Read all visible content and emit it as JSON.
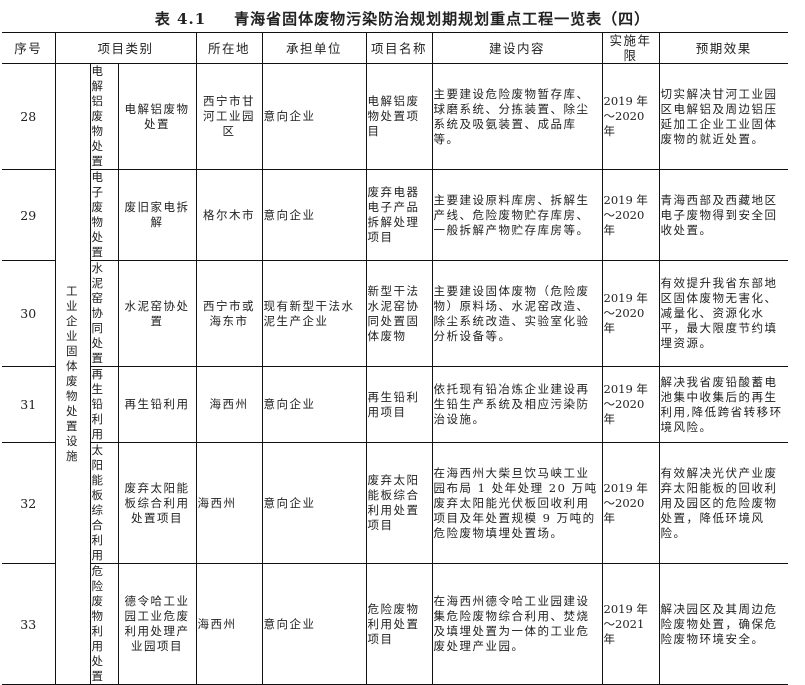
{
  "title": {
    "number": "表 4.1",
    "text": "青海省固体废物污染防治规划期规划重点工程一览表（四）"
  },
  "headers": [
    "序号",
    "项目类别",
    "所在地",
    "承担单位",
    "项目名称",
    "建设内容",
    "实施年限",
    "预期效果"
  ],
  "category_group": "工业企业固体废物处置设施",
  "rows": [
    {
      "no": "28",
      "sub": "电解铝废物处置",
      "type": "电解铝废物处置",
      "location": "西宁市甘河工业园区",
      "unit": "意向企业",
      "name": "电解铝废物处置项目",
      "content": "主要建设危险废物暂存库、球磨系统、分拣装置、除尘系统及吸氨装置、成品库等。",
      "period": "2019 年～2020 年",
      "effect": "切实解决甘河工业园区电解铝及周边铝压延加工企业工业固体废物的就近处置。"
    },
    {
      "no": "29",
      "sub": "电子废物处置",
      "type": "废旧家电拆解",
      "location": "格尔木市",
      "unit": "意向企业",
      "name": "废弃电器电子产品拆解处理项目",
      "content": "主要建设原料库房、拆解生产线、危险废物贮存库房、一般拆解产物贮存库房等。",
      "period": "2019 年～2020 年",
      "effect": "青海西部及西藏地区电子废物得到安全回收处置。"
    },
    {
      "no": "30",
      "sub": "水泥窑协同处置",
      "type": "水泥窑协处置",
      "location": "西宁市或海东市",
      "unit": "现有新型干法水泥生产企业",
      "name": "新型干法水泥窑协同处置固体废物",
      "content": "主要建设固体废物（危险废物）原料场、水泥窑改造、除尘系统改造、实验室化验分析设备等。",
      "period": "2019 年～2020 年",
      "effect": "有效提升我省东部地区固体废物无害化、减量化、资源化水平，最大限度节约填埋资源。"
    },
    {
      "no": "31",
      "sub": "再生铅利用",
      "type": "再生铅利用",
      "location": "海西州",
      "unit": "意向企业",
      "name": "再生铅利用项目",
      "content": "依托现有铅冶炼企业建设再生铅生产系统及相应污染防治设施。",
      "period": "2019 年～2020 年",
      "effect": "解决我省废铅酸蓄电池集中收集后的再生利用,降低跨省转移环境风险。"
    },
    {
      "no": "32",
      "sub": "太阳能板综合利用",
      "type": "废弃太阳能板综合利用处置项目",
      "location": "海西州",
      "unit": "意向企业",
      "name": "废弃太阳能板综合利用处置项目",
      "content": "在海西州大柴旦饮马峡工业园布局 1 处年处理 20 万吨废弃太阳能光伏板回收利用项目及年处置规模 9 万吨的危险废物填埋处置场。",
      "period": "2019 年～2020 年",
      "effect": "有效解决光伏产业废弃太阳能板的回收利用及园区的危险废物处置，降低环境风险。"
    },
    {
      "no": "33",
      "sub": "危险废物利用处置",
      "type": "德令哈工业园工业危废利用处理产业园项目",
      "location": "海西州",
      "unit": "意向企业",
      "name": "危险废物利用处置项目",
      "content": "在海西州德令哈工业园建设集危险废物综合利用、焚烧及填埋处置为一体的工业危废处理产业园。",
      "period": "2019 年～2021 年",
      "effect": "解决园区及其周边危险废物处置，确保危险废物环境安全。"
    }
  ]
}
